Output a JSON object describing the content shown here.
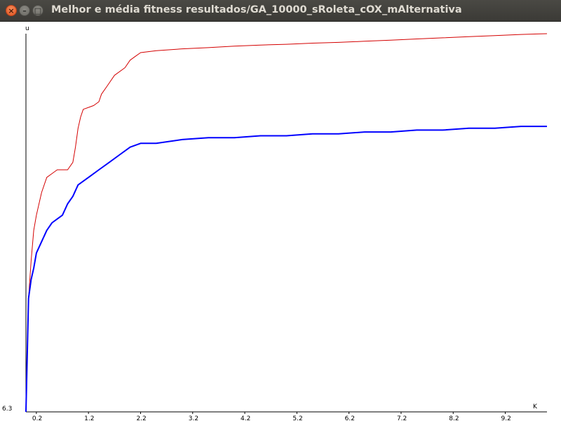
{
  "window": {
    "title": "Melhor e média fitness resultados/GA_10000_sRoleta_cOX_mAlternativa",
    "close_icon": "×",
    "minimize_icon": "–",
    "maximize_icon": "□"
  },
  "chart_data": {
    "type": "line",
    "xlabel": "K",
    "ylabel": "u",
    "y_min_label": "6.3",
    "x_ticks": [
      "0.2",
      "1.2",
      "2.2",
      "3.2",
      "4.2",
      "5.2",
      "6.2",
      "7.2",
      "8.2",
      "9.2"
    ],
    "series": [
      {
        "color": "#d40000",
        "x": [
          0,
          0.05,
          0.1,
          0.15,
          0.2,
          0.3,
          0.4,
          0.5,
          0.6,
          0.8,
          0.9,
          0.95,
          1.0,
          1.05,
          1.1,
          1.3,
          1.4,
          1.45,
          1.55,
          1.6,
          1.7,
          1.9,
          2.0,
          2.1,
          2.2,
          2.5,
          3.0,
          3.5,
          4.0,
          4.5,
          5.0,
          5.5,
          6.0,
          6.5,
          7.0,
          7.5,
          8.0,
          8.5,
          9.0,
          9.5,
          10.0
        ],
        "y": [
          0.0,
          0.3,
          0.4,
          0.48,
          0.52,
          0.58,
          0.62,
          0.63,
          0.64,
          0.64,
          0.66,
          0.7,
          0.75,
          0.78,
          0.8,
          0.81,
          0.82,
          0.84,
          0.86,
          0.87,
          0.89,
          0.91,
          0.93,
          0.94,
          0.95,
          0.955,
          0.96,
          0.963,
          0.967,
          0.97,
          0.972,
          0.975,
          0.977,
          0.98,
          0.983,
          0.986,
          0.989,
          0.992,
          0.995,
          0.998,
          1.0
        ]
      },
      {
        "color": "#0000ff",
        "x": [
          0,
          0.05,
          0.1,
          0.15,
          0.2,
          0.3,
          0.4,
          0.5,
          0.6,
          0.7,
          0.8,
          0.9,
          1.0,
          1.2,
          1.4,
          1.6,
          1.8,
          2.0,
          2.2,
          2.5,
          3.0,
          3.5,
          4.0,
          4.5,
          5.0,
          5.5,
          6.0,
          6.5,
          7.0,
          7.5,
          8.0,
          8.5,
          9.0,
          9.5,
          10.0
        ],
        "y": [
          0.0,
          0.3,
          0.35,
          0.38,
          0.42,
          0.45,
          0.48,
          0.5,
          0.51,
          0.52,
          0.55,
          0.57,
          0.6,
          0.62,
          0.64,
          0.66,
          0.68,
          0.7,
          0.71,
          0.71,
          0.72,
          0.725,
          0.725,
          0.73,
          0.73,
          0.735,
          0.735,
          0.74,
          0.74,
          0.745,
          0.745,
          0.75,
          0.75,
          0.755,
          0.755
        ]
      }
    ]
  }
}
